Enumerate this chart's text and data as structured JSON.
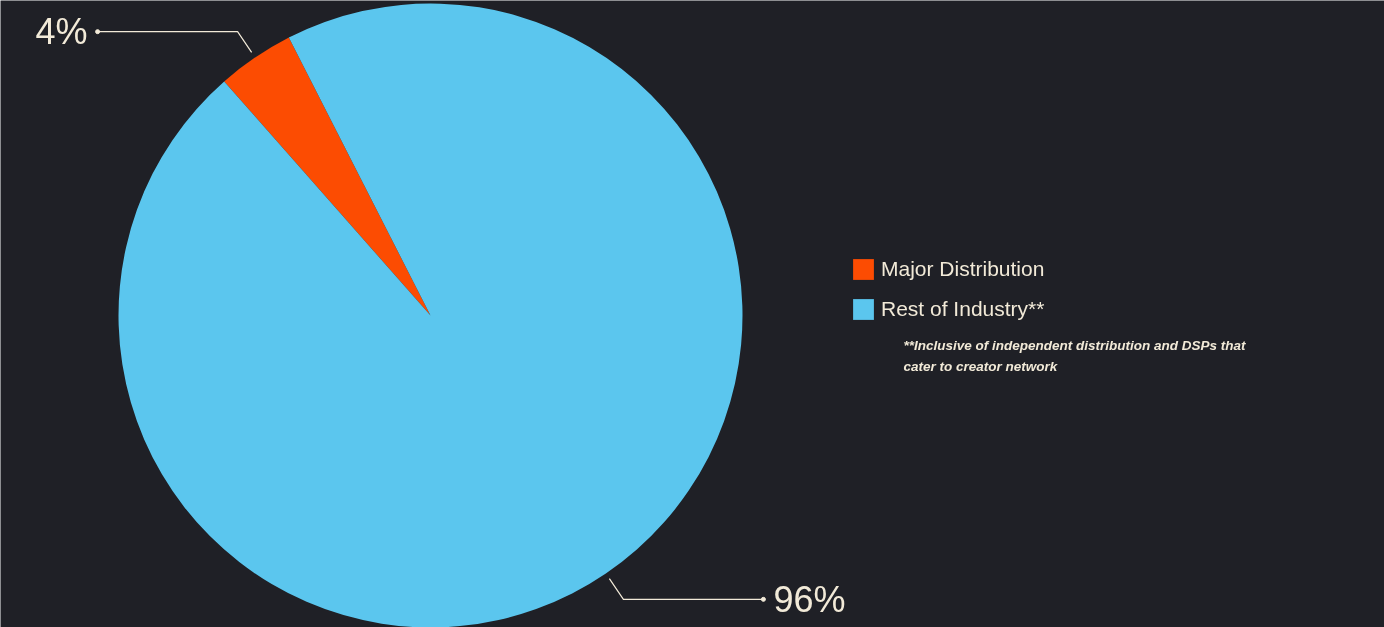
{
  "chart_data": {
    "type": "pie",
    "categories": [
      "Major Distribution",
      "Rest of Industry**"
    ],
    "values": [
      4,
      96
    ],
    "colors": [
      "#fc4c02",
      "#5bc6ee"
    ],
    "value_labels": [
      "4%",
      "96%"
    ],
    "legend": "right",
    "annotations": [
      "**Inclusive of independent distribution and DSPs that cater to creator network"
    ]
  }
}
